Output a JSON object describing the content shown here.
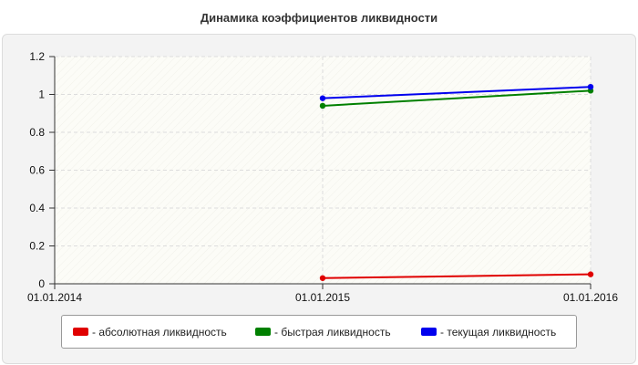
{
  "chart_data": {
    "type": "line",
    "title": "Динамика коэффициентов ликвидности",
    "x": [
      "01.01.2014",
      "01.01.2015",
      "01.01.2016"
    ],
    "ylim": [
      0,
      1.2
    ],
    "yticks": [
      "0",
      "0.2",
      "0.4",
      "0.6",
      "0.8",
      "1",
      "1.2"
    ],
    "grid": true,
    "legend_position": "bottom",
    "series": [
      {
        "name": "- абсолютная ликвидность",
        "color": "#e00000",
        "values": [
          null,
          0.03,
          0.05
        ]
      },
      {
        "name": "- быстрая ликвидность",
        "color": "#008000",
        "values": [
          null,
          0.94,
          1.02
        ]
      },
      {
        "name": "- текущая ликвидность",
        "color": "#0000ee",
        "values": [
          null,
          0.98,
          1.04
        ]
      }
    ]
  }
}
